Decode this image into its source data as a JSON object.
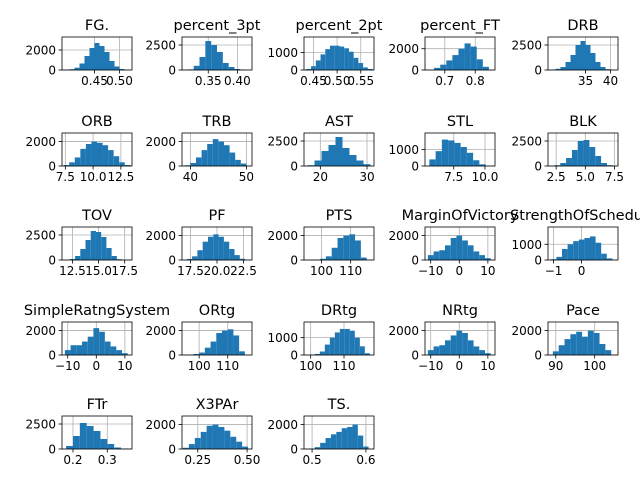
{
  "figure": {
    "bar_color": "#1f77b4",
    "grid_color": "#b0b0b0",
    "spine_color": "#000000"
  },
  "chart_data": [
    {
      "type": "bar",
      "title": "FG.",
      "xlim": [
        0.385,
        0.525
      ],
      "ylim": [
        0,
        3300
      ],
      "xticks": [
        {
          "v": 0.45,
          "label": "0.45"
        },
        {
          "v": 0.5,
          "label": "0.50"
        }
      ],
      "yticks": [
        {
          "v": 0,
          "label": "0"
        },
        {
          "v": 2000,
          "label": "2000"
        }
      ],
      "bins": [
        0.395,
        0.405,
        0.415,
        0.425,
        0.435,
        0.445,
        0.455,
        0.465,
        0.475,
        0.485,
        0.495,
        0.505,
        0.515
      ],
      "values": [
        30,
        80,
        230,
        650,
        1400,
        2200,
        2700,
        2400,
        1800,
        900,
        350,
        100,
        20
      ],
      "grid": true
    },
    {
      "type": "bar",
      "title": "percent_3pt",
      "xlim": [
        0.305,
        0.425
      ],
      "ylim": [
        0,
        3300
      ],
      "xticks": [
        {
          "v": 0.35,
          "label": "0.35"
        },
        {
          "v": 0.4,
          "label": "0.40"
        }
      ],
      "yticks": [
        {
          "v": 0,
          "label": "0"
        },
        {
          "v": 2500,
          "label": "2500"
        }
      ],
      "bins": [
        0.32,
        0.33,
        0.34,
        0.35,
        0.36,
        0.37,
        0.38,
        0.39,
        0.4,
        0.41
      ],
      "values": [
        60,
        420,
        1300,
        2900,
        2500,
        1800,
        700,
        300,
        100,
        40
      ],
      "grid": true
    },
    {
      "type": "bar",
      "title": "percent_2pt",
      "xlim": [
        0.43,
        0.578
      ],
      "ylim": [
        0,
        1900
      ],
      "xticks": [
        {
          "v": 0.45,
          "label": "0.45"
        },
        {
          "v": 0.5,
          "label": "0.50"
        },
        {
          "v": 0.55,
          "label": "0.55"
        }
      ],
      "yticks": [
        {
          "v": 0,
          "label": "0"
        },
        {
          "v": 1000,
          "label": "1000"
        }
      ],
      "bins": [
        0.44,
        0.45,
        0.46,
        0.47,
        0.48,
        0.49,
        0.5,
        0.51,
        0.52,
        0.53,
        0.54,
        0.55,
        0.56,
        0.57
      ],
      "values": [
        60,
        220,
        550,
        900,
        1200,
        1400,
        1400,
        1350,
        1250,
        1050,
        700,
        400,
        150,
        60
      ],
      "grid": true
    },
    {
      "type": "bar",
      "title": "percent_FT",
      "xlim": [
        0.635,
        0.865
      ],
      "ylim": [
        0,
        3100
      ],
      "xticks": [
        {
          "v": 0.7,
          "label": "0.7"
        },
        {
          "v": 0.8,
          "label": "0.8"
        }
      ],
      "yticks": [
        {
          "v": 0,
          "label": "0"
        },
        {
          "v": 2000,
          "label": "2000"
        }
      ],
      "bins": [
        0.655,
        0.675,
        0.695,
        0.715,
        0.735,
        0.755,
        0.775,
        0.795,
        0.815,
        0.835
      ],
      "values": [
        30,
        200,
        500,
        900,
        1400,
        2000,
        2500,
        2200,
        1000,
        300
      ],
      "grid": true
    },
    {
      "type": "bar",
      "title": "DRB",
      "xlim": [
        27.5,
        41.5
      ],
      "ylim": [
        0,
        3300
      ],
      "xticks": [
        {
          "v": 35,
          "label": "35"
        },
        {
          "v": 40,
          "label": "40"
        }
      ],
      "yticks": [
        {
          "v": 0,
          "label": "0"
        },
        {
          "v": 2500,
          "label": "2500"
        }
      ],
      "bins": [
        28.5,
        29.5,
        30.5,
        31.5,
        32.5,
        33.5,
        34.5,
        35.5,
        36.5,
        37.5,
        38.5,
        39.5
      ],
      "values": [
        30,
        120,
        300,
        800,
        1500,
        2500,
        2900,
        2500,
        1700,
        800,
        300,
        80
      ],
      "grid": true
    },
    {
      "type": "bar",
      "title": "ORB",
      "xlim": [
        7.2,
        13.5
      ],
      "ylim": [
        0,
        2700
      ],
      "xticks": [
        {
          "v": 7.5,
          "label": "7.5"
        },
        {
          "v": 10,
          "label": "10.0"
        },
        {
          "v": 12.5,
          "label": "12.5"
        }
      ],
      "yticks": [
        {
          "v": 0,
          "label": "0"
        },
        {
          "v": 2000,
          "label": "2000"
        }
      ],
      "bins": [
        7.6,
        8.1,
        8.6,
        9.1,
        9.6,
        10.1,
        10.6,
        11.1,
        11.6,
        12.1,
        12.6,
        13.1
      ],
      "values": [
        80,
        300,
        700,
        1400,
        1800,
        2000,
        1900,
        1700,
        1300,
        800,
        300,
        80
      ],
      "grid": true
    },
    {
      "type": "bar",
      "title": "TRB",
      "xlim": [
        38.5,
        51
      ],
      "ylim": [
        0,
        2700
      ],
      "xticks": [
        {
          "v": 40,
          "label": "40"
        },
        {
          "v": 50,
          "label": "50"
        }
      ],
      "yticks": [
        {
          "v": 0,
          "label": "0"
        },
        {
          "v": 2000,
          "label": "2000"
        }
      ],
      "bins": [
        39.5,
        40.5,
        41.5,
        42.5,
        43.5,
        44.5,
        45.5,
        46.5,
        47.5,
        48.5,
        49.5
      ],
      "values": [
        60,
        250,
        700,
        1300,
        1800,
        2200,
        2000,
        1700,
        1100,
        500,
        200
      ],
      "grid": true
    },
    {
      "type": "bar",
      "title": "AST",
      "xlim": [
        16.5,
        31.5
      ],
      "ylim": [
        0,
        3300
      ],
      "xticks": [
        {
          "v": 20,
          "label": "20"
        },
        {
          "v": 30,
          "label": "30"
        }
      ],
      "yticks": [
        {
          "v": 0,
          "label": "0"
        },
        {
          "v": 2500,
          "label": "2500"
        }
      ],
      "bins": [
        18,
        19.5,
        21,
        22.5,
        24,
        25.5,
        27,
        28.5,
        30
      ],
      "values": [
        80,
        550,
        1500,
        2100,
        2900,
        1800,
        1100,
        550,
        180
      ],
      "grid": true
    },
    {
      "type": "bar",
      "title": "STL",
      "xlim": [
        5.2,
        10.8
      ],
      "ylim": [
        0,
        2000
      ],
      "xticks": [
        {
          "v": 7.5,
          "label": "7.5"
        },
        {
          "v": 10,
          "label": "10.0"
        }
      ],
      "yticks": [
        {
          "v": 0,
          "label": "0"
        },
        {
          "v": 1000,
          "label": "1000"
        }
      ],
      "bins": [
        5.8,
        6.3,
        6.8,
        7.3,
        7.8,
        8.3,
        8.8,
        9.3,
        9.8
      ],
      "values": [
        400,
        900,
        1600,
        1550,
        1400,
        1150,
        800,
        350,
        100
      ],
      "grid": true
    },
    {
      "type": "bar",
      "title": "BLK",
      "xlim": [
        1.8,
        7.8
      ],
      "ylim": [
        0,
        3300
      ],
      "xticks": [
        {
          "v": 2.5,
          "label": "2.5"
        },
        {
          "v": 5,
          "label": "5.0"
        },
        {
          "v": 7.5,
          "label": "7.5"
        }
      ],
      "yticks": [
        {
          "v": 0,
          "label": "0"
        },
        {
          "v": 2500,
          "label": "2500"
        }
      ],
      "bins": [
        2.6,
        3.1,
        3.6,
        4.1,
        4.6,
        5.1,
        5.6,
        6.1,
        6.6,
        7.1
      ],
      "values": [
        80,
        300,
        800,
        1600,
        2500,
        2600,
        1900,
        1000,
        300,
        80
      ],
      "grid": true
    },
    {
      "type": "bar",
      "title": "TOV",
      "xlim": [
        11.5,
        18.2
      ],
      "ylim": [
        0,
        3300
      ],
      "xticks": [
        {
          "v": 12.5,
          "label": "12.5"
        },
        {
          "v": 15,
          "label": "15.0"
        },
        {
          "v": 17.5,
          "label": "17.5"
        }
      ],
      "yticks": [
        {
          "v": 0,
          "label": "0"
        },
        {
          "v": 2500,
          "label": "2500"
        }
      ],
      "bins": [
        12.5,
        13,
        13.5,
        14,
        14.5,
        15,
        15.5,
        16,
        16.5,
        17
      ],
      "values": [
        100,
        400,
        1100,
        2000,
        2900,
        2800,
        2300,
        1200,
        400,
        80
      ],
      "grid": true
    },
    {
      "type": "bar",
      "title": "PF",
      "xlim": [
        16.7,
        23.3
      ],
      "ylim": [
        0,
        2700
      ],
      "xticks": [
        {
          "v": 17.5,
          "label": "17.5"
        },
        {
          "v": 20,
          "label": "20.0"
        },
        {
          "v": 22.5,
          "label": "22.5"
        }
      ],
      "yticks": [
        {
          "v": 0,
          "label": "0"
        },
        {
          "v": 2000,
          "label": "2000"
        }
      ],
      "bins": [
        17.4,
        17.9,
        18.4,
        18.9,
        19.4,
        19.9,
        20.4,
        20.9,
        21.4,
        21.9,
        22.4
      ],
      "values": [
        80,
        300,
        800,
        1500,
        1900,
        2100,
        1900,
        1500,
        900,
        400,
        100
      ],
      "grid": true
    },
    {
      "type": "bar",
      "title": "PTS",
      "xlim": [
        94,
        118
      ],
      "ylim": [
        0,
        2700
      ],
      "xticks": [
        {
          "v": 100,
          "label": "100"
        },
        {
          "v": 110,
          "label": "110"
        }
      ],
      "yticks": [
        {
          "v": 0,
          "label": "0"
        },
        {
          "v": 2000,
          "label": "2000"
        }
      ],
      "bins": [
        98.5,
        100.5,
        102.5,
        104.5,
        106.5,
        108.5,
        110.5,
        112.5,
        114.5
      ],
      "values": [
        40,
        100,
        300,
        1000,
        1800,
        2000,
        2100,
        1600,
        200
      ],
      "grid": true
    },
    {
      "type": "bar",
      "title": "MarginOfVictory",
      "xlim": [
        -12,
        12.5
      ],
      "ylim": [
        0,
        2700
      ],
      "xticks": [
        {
          "v": -10,
          "label": "−10"
        },
        {
          "v": 0,
          "label": "0"
        },
        {
          "v": 10,
          "label": "10"
        }
      ],
      "yticks": [
        {
          "v": 0,
          "label": "0"
        },
        {
          "v": 2000,
          "label": "2000"
        }
      ],
      "bins": [
        -10,
        -8,
        -6,
        -4,
        -2,
        0,
        2,
        4,
        6,
        8,
        10
      ],
      "values": [
        400,
        700,
        800,
        1200,
        1800,
        2000,
        1600,
        1200,
        700,
        400,
        150
      ],
      "grid": true
    },
    {
      "type": "bar",
      "title": "StrengthOfSchedule",
      "xlim": [
        -1.2,
        1.3
      ],
      "ylim": [
        0,
        2100
      ],
      "xticks": [
        {
          "v": -1,
          "label": "−1"
        },
        {
          "v": 0,
          "label": "0"
        }
      ],
      "yticks": [
        {
          "v": 0,
          "label": "0"
        },
        {
          "v": 1000,
          "label": "1000"
        }
      ],
      "bins": [
        -1,
        -0.8,
        -0.6,
        -0.4,
        -0.2,
        0,
        0.2,
        0.4,
        0.6,
        0.8,
        1.0
      ],
      "values": [
        50,
        200,
        700,
        1000,
        1200,
        1300,
        1400,
        1500,
        1100,
        400,
        100
      ],
      "grid": true
    },
    {
      "type": "bar",
      "title": "SimpleRatngSystem",
      "xlim": [
        -12,
        12.5
      ],
      "ylim": [
        0,
        2700
      ],
      "xticks": [
        {
          "v": -10,
          "label": "−10"
        },
        {
          "v": 0,
          "label": "0"
        },
        {
          "v": 10,
          "label": "10"
        }
      ],
      "yticks": [
        {
          "v": 0,
          "label": "0"
        },
        {
          "v": 2000,
          "label": "2000"
        }
      ],
      "bins": [
        -10,
        -8,
        -6,
        -4,
        -2,
        0,
        2,
        4,
        6,
        8,
        10
      ],
      "values": [
        400,
        800,
        800,
        1100,
        1500,
        2200,
        1900,
        1100,
        700,
        400,
        150
      ],
      "grid": true
    },
    {
      "type": "bar",
      "title": "ORtg",
      "xlim": [
        94,
        118.5
      ],
      "ylim": [
        0,
        2700
      ],
      "xticks": [
        {
          "v": 100,
          "label": "100"
        },
        {
          "v": 110,
          "label": "110"
        }
      ],
      "yticks": [
        {
          "v": 0,
          "label": "0"
        },
        {
          "v": 2000,
          "label": "2000"
        }
      ],
      "bins": [
        97,
        99,
        101,
        103,
        105,
        107,
        109,
        111,
        113,
        115
      ],
      "values": [
        20,
        80,
        200,
        600,
        1100,
        1800,
        2000,
        2100,
        1600,
        300
      ],
      "grid": true
    },
    {
      "type": "bar",
      "title": "DRtg",
      "xlim": [
        98,
        119
      ],
      "ylim": [
        0,
        1900
      ],
      "xticks": [
        {
          "v": 100,
          "label": "100"
        },
        {
          "v": 110,
          "label": "110"
        }
      ],
      "yticks": [
        {
          "v": 0,
          "label": "0"
        },
        {
          "v": 1000,
          "label": "1000"
        }
      ],
      "bins": [
        100.5,
        102,
        103.5,
        105,
        106.5,
        108,
        109.5,
        111,
        112.5,
        114,
        115.5,
        117
      ],
      "values": [
        20,
        60,
        200,
        600,
        1000,
        1300,
        1500,
        1500,
        1400,
        1000,
        500,
        100
      ],
      "grid": true
    },
    {
      "type": "bar",
      "title": "NRtg",
      "xlim": [
        -12,
        12.5
      ],
      "ylim": [
        0,
        2700
      ],
      "xticks": [
        {
          "v": -10,
          "label": "−10"
        },
        {
          "v": 0,
          "label": "0"
        },
        {
          "v": 10,
          "label": "10"
        }
      ],
      "yticks": [
        {
          "v": 0,
          "label": "0"
        },
        {
          "v": 2000,
          "label": "2000"
        }
      ],
      "bins": [
        -10,
        -8,
        -6,
        -4,
        -2,
        0,
        2,
        4,
        6,
        8,
        10
      ],
      "values": [
        400,
        700,
        800,
        1200,
        1600,
        2000,
        1800,
        1200,
        700,
        400,
        150
      ],
      "grid": true
    },
    {
      "type": "bar",
      "title": "Pace",
      "xlim": [
        88,
        106
      ],
      "ylim": [
        0,
        2700
      ],
      "xticks": [
        {
          "v": 90,
          "label": "90"
        },
        {
          "v": 100,
          "label": "100"
        }
      ],
      "yticks": [
        {
          "v": 0,
          "label": "0"
        },
        {
          "v": 2000,
          "label": "2000"
        }
      ],
      "bins": [
        90,
        91.5,
        93,
        94.5,
        96,
        97.5,
        99,
        100.5,
        102,
        103.5
      ],
      "values": [
        300,
        800,
        1300,
        1700,
        1900,
        1500,
        2000,
        1800,
        900,
        400
      ],
      "grid": true
    },
    {
      "type": "bar",
      "title": "FTr",
      "xlim": [
        0.168,
        0.372
      ],
      "ylim": [
        0,
        3300
      ],
      "xticks": [
        {
          "v": 0.2,
          "label": "0.2"
        },
        {
          "v": 0.3,
          "label": "0.3"
        }
      ],
      "yticks": [
        {
          "v": 0,
          "label": "0"
        },
        {
          "v": 2500,
          "label": "2500"
        }
      ],
      "bins": [
        0.19,
        0.21,
        0.23,
        0.25,
        0.27,
        0.29,
        0.31,
        0.33,
        0.35
      ],
      "values": [
        300,
        1300,
        2600,
        2300,
        1800,
        1000,
        500,
        150,
        50
      ],
      "grid": true
    },
    {
      "type": "bar",
      "title": "X3PAr",
      "xlim": [
        0.17,
        0.525
      ],
      "ylim": [
        0,
        2700
      ],
      "xticks": [
        {
          "v": 0.25,
          "label": "0.25"
        },
        {
          "v": 0.5,
          "label": "0.50"
        }
      ],
      "yticks": [
        {
          "v": 0,
          "label": "0"
        },
        {
          "v": 2000,
          "label": "2000"
        }
      ],
      "bins": [
        0.19,
        0.22,
        0.25,
        0.28,
        0.31,
        0.34,
        0.37,
        0.4,
        0.43,
        0.46,
        0.49
      ],
      "values": [
        100,
        400,
        900,
        1400,
        1900,
        2000,
        1800,
        1500,
        1000,
        600,
        200
      ],
      "grid": true
    },
    {
      "type": "bar",
      "title": "TS.",
      "xlim": [
        0.485,
        0.615
      ],
      "ylim": [
        0,
        2700
      ],
      "xticks": [
        {
          "v": 0.5,
          "label": "0.5"
        },
        {
          "v": 0.6,
          "label": "0.6"
        }
      ],
      "yticks": [
        {
          "v": 0,
          "label": "0"
        },
        {
          "v": 2000,
          "label": "2000"
        }
      ],
      "bins": [
        0.5,
        0.51,
        0.52,
        0.53,
        0.54,
        0.55,
        0.56,
        0.57,
        0.58,
        0.59,
        0.6
      ],
      "values": [
        40,
        150,
        500,
        900,
        1200,
        1400,
        1700,
        1800,
        2000,
        1100,
        200
      ],
      "grid": true
    }
  ]
}
